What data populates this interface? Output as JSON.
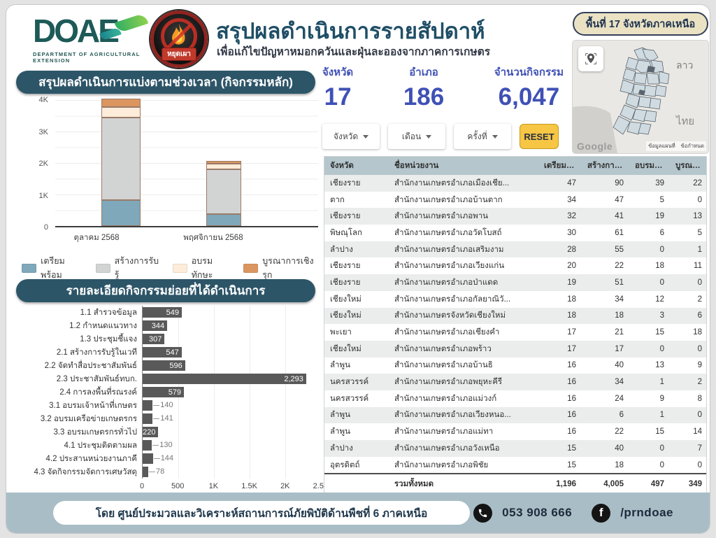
{
  "header": {
    "logo": {
      "doae": "DOAE",
      "caption": "DEPARTMENT OF AGRICULTURAL EXTENSION",
      "fire_label": "หยุดเผา"
    },
    "title": "สรุปผลดำเนินการรายสัปดาห์",
    "subtitle": "เพื่อแก้ไขปัญหาหมอกควันและฝุ่นละอองจากภาคการเกษตร",
    "region_badge": "พื้นที่ 17 จังหวัดภาคเหนือ"
  },
  "stats": [
    {
      "label": "จังหวัด",
      "value": "17"
    },
    {
      "label": "อำเภอ",
      "value": "186"
    },
    {
      "label": "จำนวนกิจกรรม",
      "value": "6,047"
    }
  ],
  "filters": {
    "dropdowns": [
      "จังหวัด",
      "เดือน",
      "ครั้งที่"
    ],
    "reset_label": "RESET"
  },
  "map": {
    "labels": {
      "laos": "ลาว",
      "thailand": "ไทย"
    },
    "google": "Google",
    "attribution": {
      "data": "ข้อมูลแผนที่",
      "terms": "ข้อกำหนด"
    }
  },
  "chart_data": [
    {
      "type": "bar",
      "subtype": "stacked-vertical",
      "title": "สรุปผลดำเนินการแบ่งตามช่วงเวลา (กิจกรรมหลัก)",
      "categories": [
        "ตุลาคม 2568",
        "พฤศจิกายน 2568"
      ],
      "series": [
        {
          "name": "เตรียมพร้อม",
          "color": "#7fa8bb",
          "values": [
            820,
            376
          ]
        },
        {
          "name": "สร้างการรับรู้",
          "color": "#d2d4d4",
          "values": [
            2590,
            1415
          ]
        },
        {
          "name": "อบรมทักษะ",
          "color": "#fcecd9",
          "values": [
            330,
            167
          ]
        },
        {
          "name": "บูรณาการเชิงรุก",
          "color": "#db9660",
          "values": [
            260,
            89
          ]
        }
      ],
      "ylim": [
        0,
        4000
      ],
      "yticks": [
        "0",
        "1K",
        "2K",
        "3K",
        "4K"
      ],
      "grid": true,
      "legend_position": "bottom"
    },
    {
      "type": "bar",
      "subtype": "horizontal",
      "title": "รายละเอียดกิจกรรมย่อยที่ได้ดำเนินการ",
      "categories": [
        "1.1 สำรวจข้อมูล",
        "1.2 กำหนดแนวทาง",
        "1.3 ประชุมชี้แจง",
        "2.1 สร้างการรับรู้ในเวที",
        "2.2 จัดทำสื่อประชาสัมพันธ์",
        "2.3 ประชาสัมพันธ์ทบก.",
        "2.4 การลงพื้นที่รณรงค์",
        "3.1 อบรมเจ้าหน้าที่เกษตร",
        "3.2 อบรมเครือข่ายเกษตรกร",
        "3.3 อบรมเกษตรกรทั่วไป",
        "4.1 ประชุมติดตามผล",
        "4.2 ประสานหน่วยงานภาคี",
        "4.3 จัดกิจกรรมจัดการเศษวัสดุ"
      ],
      "values": [
        549,
        344,
        307,
        547,
        596,
        2293,
        579,
        140,
        141,
        220,
        130,
        144,
        78
      ],
      "value_labels": [
        "549",
        "344",
        "307",
        "547",
        "596",
        "2,293",
        "579",
        "140",
        "141",
        "220",
        "130",
        "144",
        "78"
      ],
      "xlim": [
        0,
        2500
      ],
      "xticks": [
        "0",
        "500",
        "1K",
        "1.5K",
        "2K",
        "2.5K"
      ],
      "bar_color": "#595959"
    }
  ],
  "table": {
    "headers": [
      "จังหวัด",
      "ชื่อหน่วยงาน",
      "เตรียมพร้อม",
      "สร้างการรับรู้",
      "อบรมทักษะ",
      "บูรณาการเชิง..."
    ],
    "rows": [
      [
        "เชียงราย",
        "สำนักงานเกษตรอำเภอเมืองเชีย...",
        "47",
        "90",
        "39",
        "22"
      ],
      [
        "ตาก",
        "สำนักงานเกษตรอำเภอบ้านตาก",
        "34",
        "47",
        "5",
        "0"
      ],
      [
        "เชียงราย",
        "สำนักงานเกษตรอำเภอพาน",
        "32",
        "41",
        "19",
        "13"
      ],
      [
        "พิษณุโลก",
        "สำนักงานเกษตรอำเภอวัดโบสถ์",
        "30",
        "61",
        "6",
        "5"
      ],
      [
        "ลำปาง",
        "สำนักงานเกษตรอำเภอเสริมงาม",
        "28",
        "55",
        "0",
        "1"
      ],
      [
        "เชียงราย",
        "สำนักงานเกษตรอำเภอเวียงแก่น",
        "20",
        "22",
        "18",
        "11"
      ],
      [
        "เชียงราย",
        "สำนักงานเกษตรอำเภอป่าแดด",
        "19",
        "51",
        "0",
        "0"
      ],
      [
        "เชียงใหม่",
        "สำนักงานเกษตรอำเภอกัลยาณิวั...",
        "18",
        "34",
        "12",
        "2"
      ],
      [
        "เชียงใหม่",
        "สำนักงานเกษตรจังหวัดเชียงใหม่",
        "18",
        "18",
        "3",
        "6"
      ],
      [
        "พะเยา",
        "สำนักงานเกษตรอำเภอเชียงคำ",
        "17",
        "21",
        "15",
        "18"
      ],
      [
        "เชียงใหม่",
        "สำนักงานเกษตรอำเภอพร้าว",
        "17",
        "17",
        "0",
        "0"
      ],
      [
        "ลำพูน",
        "สำนักงานเกษตรอำเภอบ้านธิ",
        "16",
        "40",
        "13",
        "9"
      ],
      [
        "นครสวรรค์",
        "สำนักงานเกษตรอำเภอพยุหะคีรี",
        "16",
        "34",
        "1",
        "2"
      ],
      [
        "นครสวรรค์",
        "สำนักงานเกษตรอำเภอแม่วงก์",
        "16",
        "24",
        "9",
        "8"
      ],
      [
        "ลำพูน",
        "สำนักงานเกษตรอำเภอเวียงหนอ...",
        "16",
        "6",
        "1",
        "0"
      ],
      [
        "ลำพูน",
        "สำนักงานเกษตรอำเภอแม่ทา",
        "16",
        "22",
        "15",
        "14"
      ],
      [
        "ลำปาง",
        "สำนักงานเกษตรอำเภอวังเหนือ",
        "15",
        "40",
        "0",
        "7"
      ],
      [
        "อุตรดิตถ์",
        "สำนักงานเกษตรอำเภอพิชัย",
        "15",
        "18",
        "0",
        "0"
      ]
    ],
    "total": [
      "",
      "รวมทั้งหมด",
      "1,196",
      "4,005",
      "497",
      "349"
    ]
  },
  "footer": {
    "credit": "โดย ศูนย์ประมวลและวิเคราะห์สถานการณ์ภัยพิบัติด้านพืชที่ 6 ภาคเหนือ",
    "phone": "053 908 666",
    "facebook": "/prndoae"
  },
  "colors": {
    "banner": "#2d5568",
    "accent_blue": "#3f51b5",
    "reset_yellow": "#f6c644",
    "footer_bar": "#a9bdc6",
    "table_header": "#b5c6cd"
  }
}
